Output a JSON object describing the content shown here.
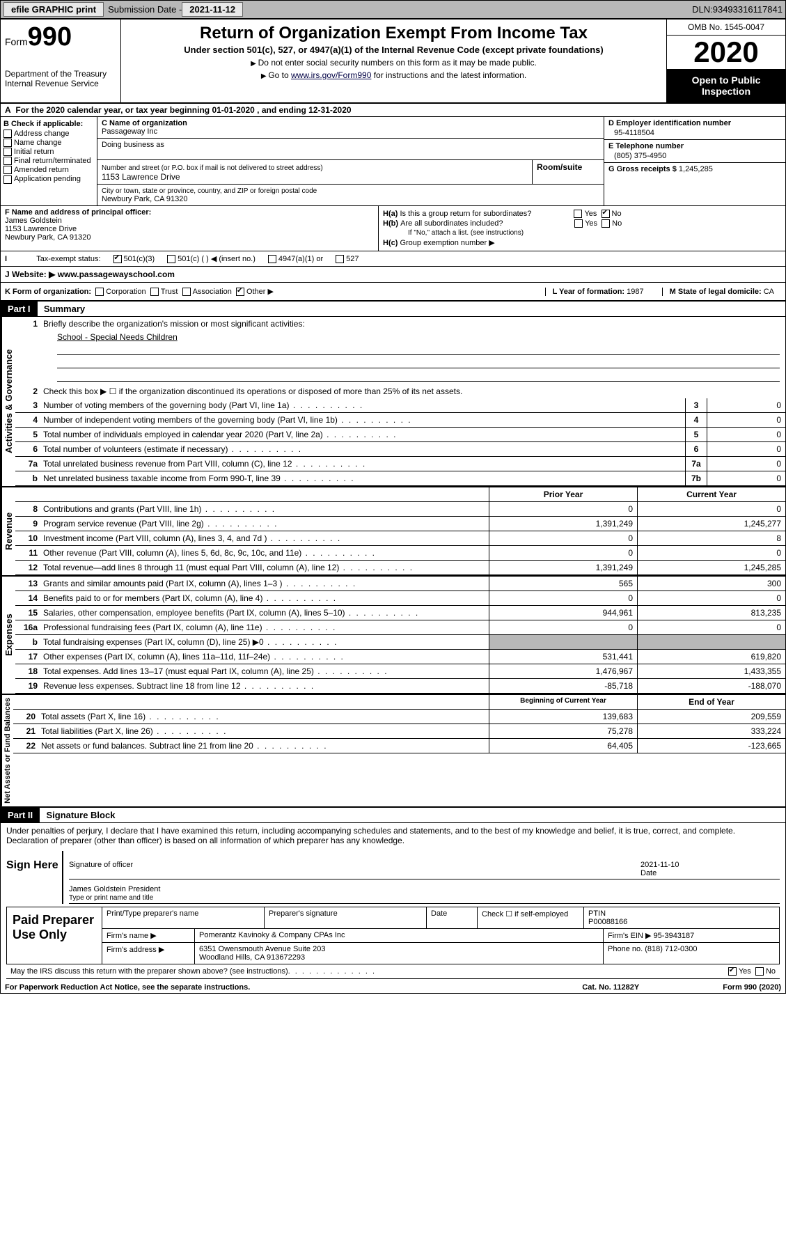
{
  "header": {
    "efile": "efile GRAPHIC print",
    "submission_label": "Submission Date - ",
    "submission_date": "2021-11-12",
    "dln_label": "DLN: ",
    "dln": "93493316117841"
  },
  "form_box": {
    "form_word": "Form",
    "form_num": "990",
    "dept1": "Department of the Treasury",
    "dept2": "Internal Revenue Service"
  },
  "title_box": {
    "title": "Return of Organization Exempt From Income Tax",
    "subtitle": "Under section 501(c), 527, or 4947(a)(1) of the Internal Revenue Code (except private foundations)",
    "note1": "Do not enter social security numbers on this form as it may be made public.",
    "note2_pre": "Go to ",
    "note2_link": "www.irs.gov/Form990",
    "note2_post": " for instructions and the latest information."
  },
  "right_box": {
    "omb": "OMB No. 1545-0047",
    "year": "2020",
    "inspect1": "Open to Public",
    "inspect2": "Inspection"
  },
  "line_a": "For the 2020 calendar year, or tax year beginning 01-01-2020    , and ending 12-31-2020",
  "box_b": {
    "hdr": "B Check if applicable:",
    "opts": [
      "Address change",
      "Name change",
      "Initial return",
      "Final return/terminated",
      "Amended return",
      "Application pending"
    ]
  },
  "box_c": {
    "name_lbl": "C Name of organization",
    "name": "Passageway Inc",
    "dba_lbl": "Doing business as",
    "dba": "",
    "addr_lbl": "Number and street (or P.O. box if mail is not delivered to street address)",
    "addr": "1153 Lawrence Drive",
    "room_lbl": "Room/suite",
    "city_lbl": "City or town, state or province, country, and ZIP or foreign postal code",
    "city": "Newbury Park, CA  91320"
  },
  "box_d": {
    "ein_lbl": "D Employer identification number",
    "ein": "95-4118504",
    "phone_lbl": "E Telephone number",
    "phone": "(805) 375-4950",
    "gross_lbl": "G Gross receipts $ ",
    "gross": "1,245,285"
  },
  "box_f": {
    "lbl": "F  Name and address of principal officer:",
    "name": "James Goldstein",
    "addr1": "1153 Lawrence Drive",
    "addr2": "Newbury Park, CA  91320"
  },
  "box_h": {
    "ha": "Is this a group return for subordinates?",
    "ha_yes": "Yes",
    "ha_no": "No",
    "hb": "Are all subordinates included?",
    "hb_note": "If \"No,\" attach a list. (see instructions)",
    "hc": "Group exemption number ▶"
  },
  "line_i": {
    "lbl": "Tax-exempt status:",
    "o1": "501(c)(3)",
    "o2": "501(c) (   ) ◀ (insert no.)",
    "o3": "4947(a)(1) or",
    "o4": "527"
  },
  "line_j": {
    "lbl": "J   Website: ▶",
    "val": "  www.passagewayschool.com"
  },
  "line_k": {
    "lbl": "K Form of organization:",
    "opts": [
      "Corporation",
      "Trust",
      "Association",
      "Other ▶"
    ],
    "l_lbl": "L Year of formation: ",
    "l_val": "1987",
    "m_lbl": "M State of legal domicile: ",
    "m_val": "CA"
  },
  "part1": {
    "hdr": "Part I",
    "title": "Summary",
    "mission_lbl": "Briefly describe the organization's mission or most significant activities:",
    "mission": "School - Special Needs Children",
    "line2": "Check this box ▶ ☐  if the organization discontinued its operations or disposed of more than 25% of its net assets.",
    "vlabels": {
      "gov": "Activities & Governance",
      "rev": "Revenue",
      "exp": "Expenses",
      "net": "Net Assets or Fund Balances"
    },
    "gov_rows": [
      {
        "n": "3",
        "d": "Number of voting members of the governing body (Part VI, line 1a)",
        "b": "3",
        "v": "0"
      },
      {
        "n": "4",
        "d": "Number of independent voting members of the governing body (Part VI, line 1b)",
        "b": "4",
        "v": "0"
      },
      {
        "n": "5",
        "d": "Total number of individuals employed in calendar year 2020 (Part V, line 2a)",
        "b": "5",
        "v": "0"
      },
      {
        "n": "6",
        "d": "Total number of volunteers (estimate if necessary)",
        "b": "6",
        "v": "0"
      },
      {
        "n": "7a",
        "d": "Total unrelated business revenue from Part VIII, column (C), line 12",
        "b": "7a",
        "v": "0"
      },
      {
        "n": "b",
        "d": "Net unrelated business taxable income from Form 990-T, line 39",
        "b": "7b",
        "v": "0"
      }
    ],
    "col_hdrs": {
      "prior": "Prior Year",
      "current": "Current Year"
    },
    "rev_rows": [
      {
        "n": "8",
        "d": "Contributions and grants (Part VIII, line 1h)",
        "p": "0",
        "c": "0"
      },
      {
        "n": "9",
        "d": "Program service revenue (Part VIII, line 2g)",
        "p": "1,391,249",
        "c": "1,245,277"
      },
      {
        "n": "10",
        "d": "Investment income (Part VIII, column (A), lines 3, 4, and 7d )",
        "p": "0",
        "c": "8"
      },
      {
        "n": "11",
        "d": "Other revenue (Part VIII, column (A), lines 5, 6d, 8c, 9c, 10c, and 11e)",
        "p": "0",
        "c": "0"
      },
      {
        "n": "12",
        "d": "Total revenue—add lines 8 through 11 (must equal Part VIII, column (A), line 12)",
        "p": "1,391,249",
        "c": "1,245,285"
      }
    ],
    "exp_rows": [
      {
        "n": "13",
        "d": "Grants and similar amounts paid (Part IX, column (A), lines 1–3 )",
        "p": "565",
        "c": "300"
      },
      {
        "n": "14",
        "d": "Benefits paid to or for members (Part IX, column (A), line 4)",
        "p": "0",
        "c": "0"
      },
      {
        "n": "15",
        "d": "Salaries, other compensation, employee benefits (Part IX, column (A), lines 5–10)",
        "p": "944,961",
        "c": "813,235"
      },
      {
        "n": "16a",
        "d": "Professional fundraising fees (Part IX, column (A), line 11e)",
        "p": "0",
        "c": "0"
      },
      {
        "n": "b",
        "d": "Total fundraising expenses (Part IX, column (D), line 25) ▶0",
        "p": "",
        "c": "",
        "shaded": true
      },
      {
        "n": "17",
        "d": "Other expenses (Part IX, column (A), lines 11a–11d, 11f–24e)",
        "p": "531,441",
        "c": "619,820"
      },
      {
        "n": "18",
        "d": "Total expenses. Add lines 13–17 (must equal Part IX, column (A), line 25)",
        "p": "1,476,967",
        "c": "1,433,355"
      },
      {
        "n": "19",
        "d": "Revenue less expenses. Subtract line 18 from line 12",
        "p": "-85,718",
        "c": "-188,070"
      }
    ],
    "net_hdrs": {
      "beg": "Beginning of Current Year",
      "end": "End of Year"
    },
    "net_rows": [
      {
        "n": "20",
        "d": "Total assets (Part X, line 16)",
        "p": "139,683",
        "c": "209,559"
      },
      {
        "n": "21",
        "d": "Total liabilities (Part X, line 26)",
        "p": "75,278",
        "c": "333,224"
      },
      {
        "n": "22",
        "d": "Net assets or fund balances. Subtract line 21 from line 20",
        "p": "64,405",
        "c": "-123,665"
      }
    ]
  },
  "part2": {
    "hdr": "Part II",
    "title": "Signature Block",
    "decl": "Under penalties of perjury, I declare that I have examined this return, including accompanying schedules and statements, and to the best of my knowledge and belief, it is true, correct, and complete. Declaration of preparer (other than officer) is based on all information of which preparer has any knowledge.",
    "sign_here": "Sign Here",
    "sig_officer": "Signature of officer",
    "sig_date": "2021-11-10",
    "sig_date_lbl": "Date",
    "officer_name": "James Goldstein  President",
    "officer_name_lbl": "Type or print name and title",
    "paid": "Paid Preparer Use Only",
    "prep_name_lbl": "Print/Type preparer's name",
    "prep_sig_lbl": "Preparer's signature",
    "prep_date_lbl": "Date",
    "prep_check": "Check ☐ if self-employed",
    "ptin_lbl": "PTIN",
    "ptin": "P00088166",
    "firm_name_lbl": "Firm's name     ▶",
    "firm_name": "Pomerantz Kavinoky & Company CPAs Inc",
    "firm_ein_lbl": "Firm's EIN ▶",
    "firm_ein": "95-3943187",
    "firm_addr_lbl": "Firm's address ▶",
    "firm_addr1": "6351 Owensmouth Avenue Suite 203",
    "firm_addr2": "Woodland Hills, CA  913672293",
    "firm_phone_lbl": "Phone no. ",
    "firm_phone": "(818) 712-0300",
    "discuss": "May the IRS discuss this return with the preparer shown above? (see instructions)",
    "discuss_yes": "Yes",
    "discuss_no": "No"
  },
  "footer": {
    "paperwork": "For Paperwork Reduction Act Notice, see the separate instructions.",
    "cat": "Cat. No. 11282Y",
    "form": "Form 990 (2020)"
  }
}
